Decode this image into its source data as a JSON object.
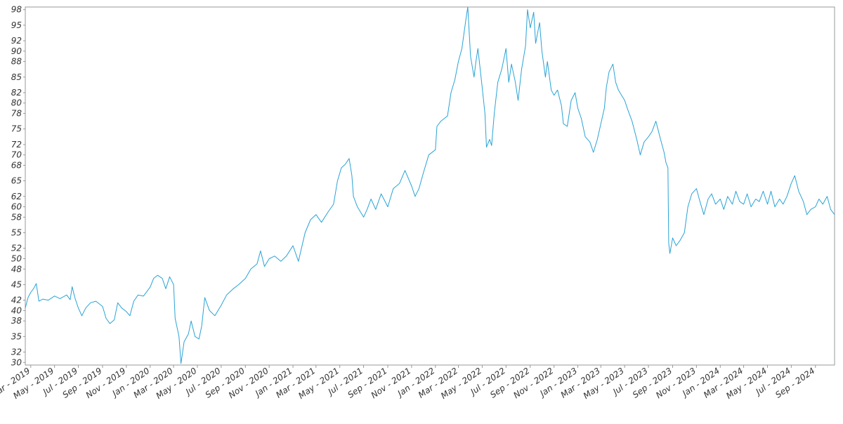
{
  "chart_data": {
    "type": "line",
    "title": "",
    "xlabel": "",
    "ylabel": "",
    "line_color": "#29a3d6",
    "grid": false,
    "legend": "none",
    "xlim": [
      "2019-02-15",
      "2024-10-20"
    ],
    "ylim": [
      29.5,
      98.5
    ],
    "y_ticks": [
      30,
      32,
      35,
      38,
      40,
      42,
      45,
      48,
      50,
      52,
      55,
      58,
      60,
      62,
      65,
      68,
      70,
      72,
      75,
      78,
      80,
      82,
      85,
      88,
      90,
      92,
      95,
      98
    ],
    "x_ticks": [
      {
        "date": "2019-03-01",
        "label": "Mar - 2019"
      },
      {
        "date": "2019-05-01",
        "label": "May - 2019"
      },
      {
        "date": "2019-07-01",
        "label": "Jul - 2019"
      },
      {
        "date": "2019-09-01",
        "label": "Sep - 2019"
      },
      {
        "date": "2019-11-01",
        "label": "Nov - 2019"
      },
      {
        "date": "2020-01-01",
        "label": "Jan - 2020"
      },
      {
        "date": "2020-03-01",
        "label": "Mar - 2020"
      },
      {
        "date": "2020-05-01",
        "label": "May - 2020"
      },
      {
        "date": "2020-07-01",
        "label": "Jul - 2020"
      },
      {
        "date": "2020-09-01",
        "label": "Sep - 2020"
      },
      {
        "date": "2020-11-01",
        "label": "Nov - 2020"
      },
      {
        "date": "2021-01-01",
        "label": "Jan - 2021"
      },
      {
        "date": "2021-03-01",
        "label": "Mar - 2021"
      },
      {
        "date": "2021-05-01",
        "label": "May - 2021"
      },
      {
        "date": "2021-07-01",
        "label": "Jul - 2021"
      },
      {
        "date": "2021-09-01",
        "label": "Sep - 2021"
      },
      {
        "date": "2021-11-01",
        "label": "Nov - 2021"
      },
      {
        "date": "2022-01-01",
        "label": "Jan - 2022"
      },
      {
        "date": "2022-03-01",
        "label": "Mar - 2022"
      },
      {
        "date": "2022-05-01",
        "label": "May - 2022"
      },
      {
        "date": "2022-07-01",
        "label": "Jul - 2022"
      },
      {
        "date": "2022-09-01",
        "label": "Sep - 2022"
      },
      {
        "date": "2022-11-01",
        "label": "Nov - 2022"
      },
      {
        "date": "2023-01-01",
        "label": "Jan - 2023"
      },
      {
        "date": "2023-03-01",
        "label": "Mar - 2023"
      },
      {
        "date": "2023-05-01",
        "label": "May - 2023"
      },
      {
        "date": "2023-07-01",
        "label": "Jul - 2023"
      },
      {
        "date": "2023-09-01",
        "label": "Sep - 2023"
      },
      {
        "date": "2023-11-01",
        "label": "Nov - 2023"
      },
      {
        "date": "2024-01-01",
        "label": "Jan - 2024"
      },
      {
        "date": "2024-03-01",
        "label": "Mar - 2024"
      },
      {
        "date": "2024-05-01",
        "label": "May - 2024"
      },
      {
        "date": "2024-07-01",
        "label": "Jul - 2024"
      },
      {
        "date": "2024-09-01",
        "label": "Sep - 2024"
      }
    ],
    "series": [
      {
        "points": [
          [
            "2019-02-15",
            40.5
          ],
          [
            "2019-02-22",
            42.5
          ],
          [
            "2019-03-01",
            43.5
          ],
          [
            "2019-03-08",
            44.2
          ],
          [
            "2019-03-15",
            45.2
          ],
          [
            "2019-03-22",
            41.8
          ],
          [
            "2019-04-01",
            42.2
          ],
          [
            "2019-04-15",
            42.0
          ],
          [
            "2019-05-01",
            42.8
          ],
          [
            "2019-05-15",
            42.3
          ],
          [
            "2019-06-01",
            43.0
          ],
          [
            "2019-06-10",
            42.1
          ],
          [
            "2019-06-15",
            44.6
          ],
          [
            "2019-06-22",
            42.5
          ],
          [
            "2019-07-01",
            40.5
          ],
          [
            "2019-07-10",
            39.0
          ],
          [
            "2019-07-20",
            40.5
          ],
          [
            "2019-08-01",
            41.5
          ],
          [
            "2019-08-15",
            41.8
          ],
          [
            "2019-09-01",
            40.8
          ],
          [
            "2019-09-10",
            38.5
          ],
          [
            "2019-09-20",
            37.5
          ],
          [
            "2019-10-01",
            38.2
          ],
          [
            "2019-10-10",
            41.5
          ],
          [
            "2019-10-20",
            40.5
          ],
          [
            "2019-11-01",
            39.8
          ],
          [
            "2019-11-10",
            39.0
          ],
          [
            "2019-11-20",
            41.8
          ],
          [
            "2019-12-01",
            43.0
          ],
          [
            "2019-12-15",
            42.8
          ],
          [
            "2020-01-01",
            44.5
          ],
          [
            "2020-01-10",
            46.2
          ],
          [
            "2020-01-20",
            46.8
          ],
          [
            "2020-02-01",
            46.2
          ],
          [
            "2020-02-10",
            44.2
          ],
          [
            "2020-02-20",
            46.5
          ],
          [
            "2020-03-01",
            45.0
          ],
          [
            "2020-03-05",
            38.5
          ],
          [
            "2020-03-15",
            35.0
          ],
          [
            "2020-03-20",
            29.8
          ],
          [
            "2020-03-28",
            34.0
          ],
          [
            "2020-04-08",
            35.5
          ],
          [
            "2020-04-15",
            38.0
          ],
          [
            "2020-04-25",
            35.0
          ],
          [
            "2020-05-05",
            34.5
          ],
          [
            "2020-05-12",
            37.0
          ],
          [
            "2020-05-20",
            42.5
          ],
          [
            "2020-06-01",
            40.0
          ],
          [
            "2020-06-15",
            39.0
          ],
          [
            "2020-07-01",
            41.0
          ],
          [
            "2020-07-15",
            43.0
          ],
          [
            "2020-08-01",
            44.2
          ],
          [
            "2020-08-15",
            45.0
          ],
          [
            "2020-09-01",
            46.2
          ],
          [
            "2020-09-15",
            48.0
          ],
          [
            "2020-10-01",
            49.0
          ],
          [
            "2020-10-10",
            51.5
          ],
          [
            "2020-10-20",
            48.5
          ],
          [
            "2020-11-01",
            50.0
          ],
          [
            "2020-11-15",
            50.5
          ],
          [
            "2020-12-01",
            49.5
          ],
          [
            "2020-12-15",
            50.5
          ],
          [
            "2021-01-01",
            52.5
          ],
          [
            "2021-01-15",
            49.5
          ],
          [
            "2021-02-01",
            55.0
          ],
          [
            "2021-02-15",
            57.5
          ],
          [
            "2021-03-01",
            58.5
          ],
          [
            "2021-03-15",
            57.0
          ],
          [
            "2021-04-01",
            59.0
          ],
          [
            "2021-04-15",
            60.5
          ],
          [
            "2021-04-25",
            65.0
          ],
          [
            "2021-05-05",
            67.5
          ],
          [
            "2021-05-15",
            68.2
          ],
          [
            "2021-05-25",
            69.3
          ],
          [
            "2021-06-01",
            66.0
          ],
          [
            "2021-06-05",
            62.0
          ],
          [
            "2021-06-15",
            60.0
          ],
          [
            "2021-07-01",
            58.0
          ],
          [
            "2021-07-10",
            59.5
          ],
          [
            "2021-07-20",
            61.5
          ],
          [
            "2021-08-01",
            59.5
          ],
          [
            "2021-08-15",
            62.5
          ],
          [
            "2021-09-01",
            60.0
          ],
          [
            "2021-09-15",
            63.5
          ],
          [
            "2021-10-01",
            64.5
          ],
          [
            "2021-10-15",
            67.0
          ],
          [
            "2021-11-01",
            64.0
          ],
          [
            "2021-11-10",
            62.0
          ],
          [
            "2021-11-20",
            63.5
          ],
          [
            "2021-12-01",
            66.5
          ],
          [
            "2021-12-15",
            70.0
          ],
          [
            "2022-01-01",
            71.0
          ],
          [
            "2022-01-05",
            75.5
          ],
          [
            "2022-01-15",
            76.5
          ],
          [
            "2022-02-01",
            77.5
          ],
          [
            "2022-02-10",
            82.0
          ],
          [
            "2022-02-20",
            84.5
          ],
          [
            "2022-03-01",
            88.0
          ],
          [
            "2022-03-10",
            90.5
          ],
          [
            "2022-03-20",
            96.0
          ],
          [
            "2022-03-25",
            98.5
          ],
          [
            "2022-04-01",
            89.0
          ],
          [
            "2022-04-10",
            85.0
          ],
          [
            "2022-04-15",
            88.0
          ],
          [
            "2022-04-20",
            90.5
          ],
          [
            "2022-05-01",
            83.0
          ],
          [
            "2022-05-08",
            78.0
          ],
          [
            "2022-05-12",
            71.5
          ],
          [
            "2022-05-20",
            73.0
          ],
          [
            "2022-05-25",
            71.8
          ],
          [
            "2022-06-01",
            78.0
          ],
          [
            "2022-06-10",
            84.0
          ],
          [
            "2022-06-20",
            86.5
          ],
          [
            "2022-07-01",
            90.5
          ],
          [
            "2022-07-08",
            84.0
          ],
          [
            "2022-07-15",
            87.5
          ],
          [
            "2022-07-25",
            84.0
          ],
          [
            "2022-08-01",
            80.5
          ],
          [
            "2022-08-10",
            86.5
          ],
          [
            "2022-08-20",
            91.0
          ],
          [
            "2022-08-25",
            98.0
          ],
          [
            "2022-09-01",
            94.5
          ],
          [
            "2022-09-10",
            97.5
          ],
          [
            "2022-09-15",
            91.5
          ],
          [
            "2022-09-25",
            95.5
          ],
          [
            "2022-10-01",
            90.0
          ],
          [
            "2022-10-10",
            85.0
          ],
          [
            "2022-10-15",
            88.0
          ],
          [
            "2022-10-25",
            82.5
          ],
          [
            "2022-11-01",
            81.5
          ],
          [
            "2022-11-10",
            82.5
          ],
          [
            "2022-11-20",
            79.5
          ],
          [
            "2022-11-25",
            76.0
          ],
          [
            "2022-12-05",
            75.5
          ],
          [
            "2022-12-15",
            80.5
          ],
          [
            "2022-12-25",
            82.0
          ],
          [
            "2023-01-01",
            79.0
          ],
          [
            "2023-01-10",
            77.0
          ],
          [
            "2023-01-20",
            73.5
          ],
          [
            "2023-02-01",
            72.5
          ],
          [
            "2023-02-10",
            70.5
          ],
          [
            "2023-02-20",
            73.0
          ],
          [
            "2023-03-01",
            76.0
          ],
          [
            "2023-03-10",
            79.0
          ],
          [
            "2023-03-15",
            83.0
          ],
          [
            "2023-03-22",
            86.0
          ],
          [
            "2023-04-01",
            87.5
          ],
          [
            "2023-04-08",
            84.0
          ],
          [
            "2023-04-15",
            82.5
          ],
          [
            "2023-05-01",
            80.5
          ],
          [
            "2023-05-10",
            78.5
          ],
          [
            "2023-05-20",
            76.5
          ],
          [
            "2023-06-01",
            73.0
          ],
          [
            "2023-06-10",
            70.0
          ],
          [
            "2023-06-20",
            72.5
          ],
          [
            "2023-07-01",
            73.5
          ],
          [
            "2023-07-10",
            74.5
          ],
          [
            "2023-07-20",
            76.5
          ],
          [
            "2023-08-01",
            73.0
          ],
          [
            "2023-08-10",
            70.5
          ],
          [
            "2023-08-15",
            68.5
          ],
          [
            "2023-08-20",
            67.5
          ],
          [
            "2023-08-22",
            53.0
          ],
          [
            "2023-08-25",
            51.0
          ],
          [
            "2023-09-01",
            54.0
          ],
          [
            "2023-09-10",
            52.5
          ],
          [
            "2023-09-20",
            53.5
          ],
          [
            "2023-10-01",
            55.0
          ],
          [
            "2023-10-10",
            60.0
          ],
          [
            "2023-10-20",
            62.5
          ],
          [
            "2023-11-01",
            63.5
          ],
          [
            "2023-11-10",
            61.0
          ],
          [
            "2023-11-20",
            58.5
          ],
          [
            "2023-12-01",
            61.5
          ],
          [
            "2023-12-10",
            62.5
          ],
          [
            "2023-12-20",
            60.5
          ],
          [
            "2024-01-01",
            61.5
          ],
          [
            "2024-01-10",
            59.5
          ],
          [
            "2024-01-20",
            62.0
          ],
          [
            "2024-02-01",
            60.5
          ],
          [
            "2024-02-10",
            63.0
          ],
          [
            "2024-02-20",
            61.0
          ],
          [
            "2024-03-01",
            60.5
          ],
          [
            "2024-03-10",
            62.5
          ],
          [
            "2024-03-20",
            60.0
          ],
          [
            "2024-04-01",
            61.5
          ],
          [
            "2024-04-10",
            61.0
          ],
          [
            "2024-04-20",
            63.0
          ],
          [
            "2024-05-01",
            60.5
          ],
          [
            "2024-05-10",
            63.0
          ],
          [
            "2024-05-20",
            60.0
          ],
          [
            "2024-06-01",
            61.5
          ],
          [
            "2024-06-10",
            60.5
          ],
          [
            "2024-06-20",
            62.0
          ],
          [
            "2024-07-01",
            64.5
          ],
          [
            "2024-07-10",
            66.0
          ],
          [
            "2024-07-20",
            63.0
          ],
          [
            "2024-08-01",
            61.0
          ],
          [
            "2024-08-10",
            58.5
          ],
          [
            "2024-08-20",
            59.5
          ],
          [
            "2024-09-01",
            60.0
          ],
          [
            "2024-09-10",
            61.5
          ],
          [
            "2024-09-20",
            60.5
          ],
          [
            "2024-10-01",
            62.0
          ],
          [
            "2024-10-10",
            59.5
          ],
          [
            "2024-10-20",
            58.5
          ]
        ]
      }
    ]
  }
}
